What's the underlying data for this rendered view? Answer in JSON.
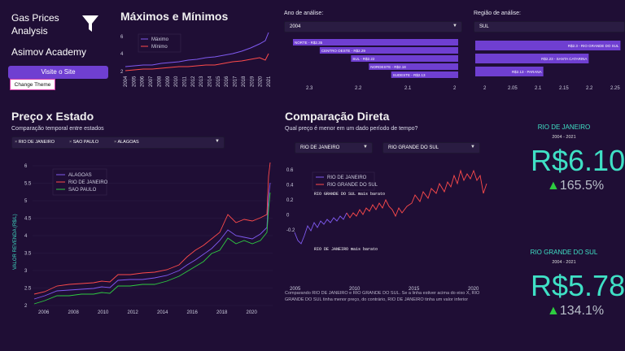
{
  "sidebar": {
    "brand_line1": "Gas Prices",
    "brand_line2": "Analysis",
    "academy": "Asimov Academy",
    "visit_button": "Visite o Site",
    "theme_button": "Change Theme"
  },
  "minmax": {
    "title": "Máximos e Mínimos",
    "legend": [
      "Máximo",
      "Mínimo"
    ],
    "yticks": [
      "6",
      "4",
      "2"
    ],
    "xticks": [
      "2004",
      "2005",
      "2006",
      "2007",
      "2008",
      "2009",
      "2010",
      "2011",
      "2012",
      "2013",
      "2014",
      "2015",
      "2016",
      "2017",
      "2018",
      "2019",
      "2020",
      "2021"
    ]
  },
  "filters": {
    "year_label": "Ano de análise:",
    "year_value": "2004",
    "region_label": "Região de análise:",
    "region_value": "SUL"
  },
  "region_bars": {
    "bars": [
      {
        "label": "NORTE - R$2.35",
        "value": 2.35
      },
      {
        "label": "CENTRO OESTE - R$2.29",
        "value": 2.29
      },
      {
        "label": "SUL - R$2.22",
        "value": 2.22
      },
      {
        "label": "NORDESTE - R$2.18",
        "value": 2.18
      },
      {
        "label": "SUDESTE - R$2.13",
        "value": 2.13
      }
    ],
    "xticks": [
      "2.3",
      "2.2",
      "2.1",
      "2"
    ]
  },
  "state_bars": {
    "bars": [
      {
        "label": "R$2.3 - RIO GRANDE DO SUL",
        "value": 2.3
      },
      {
        "label": "R$2.23 - SANTA CATARINA",
        "value": 2.23
      },
      {
        "label": "R$2.13 - PARANA",
        "value": 2.13
      }
    ],
    "xticks": [
      "2",
      "2.05",
      "2.1",
      "2.15",
      "2.2",
      "2.25"
    ]
  },
  "preco_estado": {
    "title": "Preço x Estado",
    "subtitle": "Comparação temporal entre estados",
    "chips": [
      "RIO DE JANEIRO",
      "SAO PAULO",
      "ALAGOAS"
    ],
    "legend": [
      "ALAGOAS",
      "RIO DE JANEIRO",
      "SAO PAULO"
    ],
    "ylabel": "VALOR REVENDA (R$/L)",
    "yticks": [
      "6",
      "5.5",
      "5",
      "4.5",
      "4",
      "3.5",
      "3",
      "2.5",
      "2"
    ],
    "xticks": [
      "2006",
      "2008",
      "2010",
      "2012",
      "2014",
      "2016",
      "2018",
      "2020"
    ]
  },
  "comparacao": {
    "title": "Comparação Direta",
    "subtitle": "Qual preço é menor em um dado período de tempo?",
    "state_a": "RIO DE JANEIRO",
    "state_b": "RIO GRANDE DO SUL",
    "legend": [
      "RIO DE JANEIRO",
      "RIO GRANDE DO SUL"
    ],
    "annot_top": "RIO GRANDE DO SUL mais barato",
    "annot_bottom": "RIO DE JANEIRO mais barato",
    "yticks": [
      "0.6",
      "0.4",
      "0.2",
      "0",
      "-0.2"
    ],
    "xticks": [
      "2005",
      "2010",
      "2015",
      "2020"
    ],
    "note": "Comparando RIO DE JANEIRO e RIO GRANDE DO SUL. Se a linha estiver acima do eixo X, RIO GRANDE DO SUL tinha menor preço, do contrário, RIO DE JANEIRO tinha um valor inferior"
  },
  "card_a": {
    "name": "RIO DE JANEIRO",
    "period": "2004 - 2021",
    "price": "R$6.10",
    "change": "165.5%"
  },
  "card_b": {
    "name": "RIO GRANDE DO SUL",
    "period": "2004 - 2021",
    "price": "R$5.78",
    "change": "134.1%"
  },
  "colors": {
    "bg": "#1f0e35",
    "accent": "#6f3fd1",
    "teal": "#3fe0c5",
    "red": "#ff4b4b",
    "green": "#2ecc40"
  }
}
